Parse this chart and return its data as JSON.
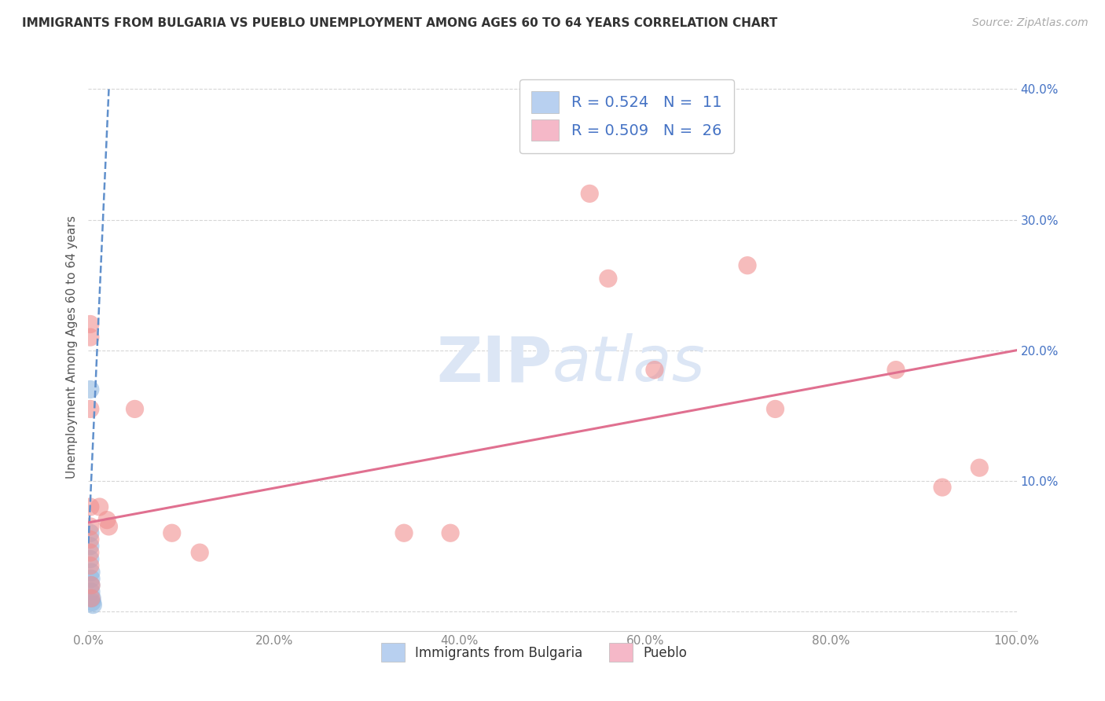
{
  "title": "IMMIGRANTS FROM BULGARIA VS PUEBLO UNEMPLOYMENT AMONG AGES 60 TO 64 YEARS CORRELATION CHART",
  "source": "Source: ZipAtlas.com",
  "ylabel": "Unemployment Among Ages 60 to 64 years",
  "xlim": [
    0,
    1.0
  ],
  "ylim": [
    -0.015,
    0.42
  ],
  "xticks": [
    0.0,
    0.2,
    0.4,
    0.6,
    0.8,
    1.0
  ],
  "xtick_labels": [
    "0.0%",
    "20.0%",
    "40.0%",
    "60.0%",
    "80.0%",
    "100.0%"
  ],
  "yticks": [
    0.0,
    0.1,
    0.2,
    0.3,
    0.4
  ],
  "ytick_labels": [
    "",
    "10.0%",
    "20.0%",
    "30.0%",
    "40.0%"
  ],
  "legend_entries": [
    {
      "label": "R = 0.524   N =  11",
      "facecolor": "#b8d0f0"
    },
    {
      "label": "R = 0.509   N =  26",
      "facecolor": "#f5b8c8"
    }
  ],
  "bulgaria_points": [
    [
      0.002,
      0.17
    ],
    [
      0.002,
      0.06
    ],
    [
      0.002,
      0.05
    ],
    [
      0.002,
      0.04
    ],
    [
      0.003,
      0.03
    ],
    [
      0.003,
      0.025
    ],
    [
      0.003,
      0.02
    ],
    [
      0.003,
      0.015
    ],
    [
      0.004,
      0.01
    ],
    [
      0.004,
      0.007
    ],
    [
      0.005,
      0.005
    ]
  ],
  "pueblo_points": [
    [
      0.002,
      0.22
    ],
    [
      0.002,
      0.21
    ],
    [
      0.002,
      0.155
    ],
    [
      0.002,
      0.08
    ],
    [
      0.002,
      0.065
    ],
    [
      0.002,
      0.055
    ],
    [
      0.002,
      0.045
    ],
    [
      0.002,
      0.035
    ],
    [
      0.003,
      0.02
    ],
    [
      0.003,
      0.01
    ],
    [
      0.012,
      0.08
    ],
    [
      0.02,
      0.07
    ],
    [
      0.022,
      0.065
    ],
    [
      0.05,
      0.155
    ],
    [
      0.09,
      0.06
    ],
    [
      0.12,
      0.045
    ],
    [
      0.34,
      0.06
    ],
    [
      0.39,
      0.06
    ],
    [
      0.54,
      0.32
    ],
    [
      0.56,
      0.255
    ],
    [
      0.61,
      0.185
    ],
    [
      0.71,
      0.265
    ],
    [
      0.74,
      0.155
    ],
    [
      0.87,
      0.185
    ],
    [
      0.92,
      0.095
    ],
    [
      0.96,
      0.11
    ]
  ],
  "bulgaria_line_x": [
    0.0,
    0.022
  ],
  "bulgaria_line_y": [
    0.052,
    0.4
  ],
  "pueblo_line_x": [
    0.0,
    1.0
  ],
  "pueblo_line_y": [
    0.068,
    0.2
  ],
  "bg_color": "#ffffff",
  "grid_color": "#cccccc",
  "title_color": "#333333",
  "source_color": "#aaaaaa",
  "label_color": "#4472c4",
  "watermark_color": "#dce6f5",
  "scatter_blue": "#90b8e0",
  "scatter_pink": "#f09090",
  "line_blue": "#6090cc",
  "line_pink": "#e07090"
}
